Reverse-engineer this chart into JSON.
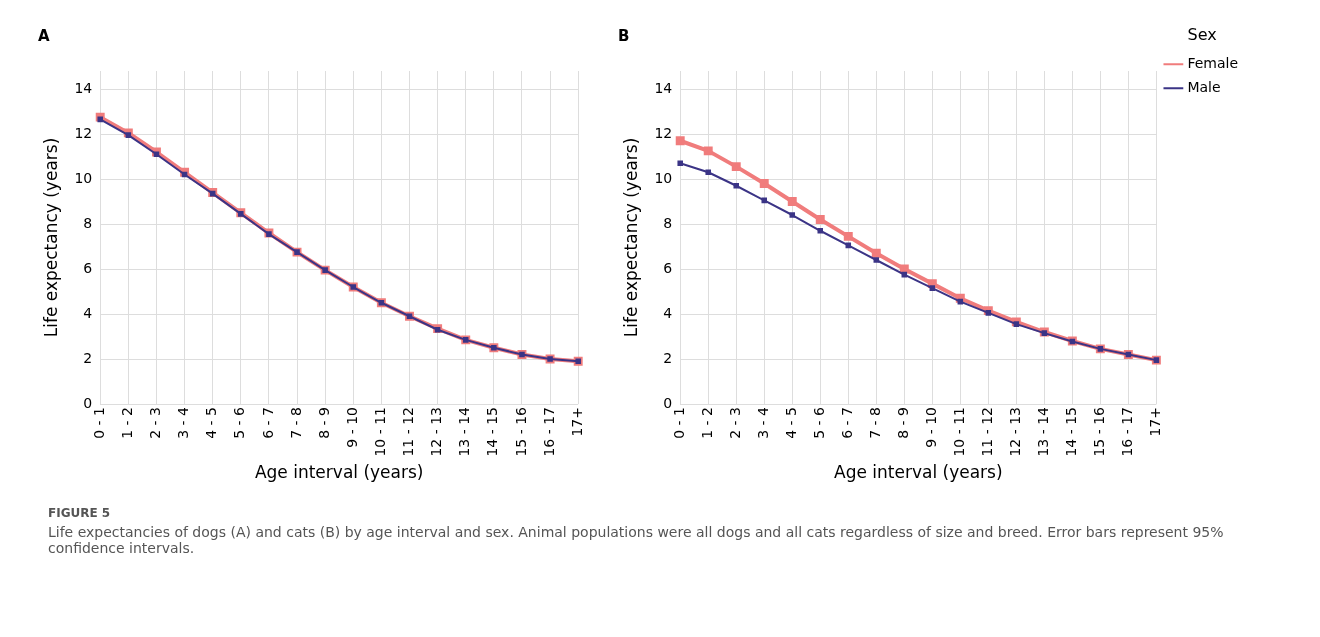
{
  "chart_data": [
    {
      "type": "line",
      "title": "A",
      "xlabel": "Age interval (years)",
      "ylabel": "Life expectancy (years)",
      "categories": [
        "0 - 1",
        "1 - 2",
        "2 - 3",
        "3 - 4",
        "4 - 5",
        "5 - 6",
        "6 - 7",
        "7 - 8",
        "8 - 9",
        "9 - 10",
        "10 - 11",
        "11 - 12",
        "12 - 13",
        "13 - 14",
        "14 - 15",
        "15 - 16",
        "16 - 17",
        "17+"
      ],
      "series": [
        {
          "color": "#f07c7c",
          "values": [
            12.75,
            12.05,
            11.2,
            10.3,
            9.4,
            8.5,
            7.6,
            6.75,
            5.95,
            5.2,
            4.5,
            3.9,
            3.35,
            2.85,
            2.5,
            2.2,
            2.0,
            1.9
          ]
        },
        {
          "color": "#3b3486",
          "values": [
            12.65,
            11.95,
            11.1,
            10.2,
            9.35,
            8.45,
            7.55,
            6.75,
            5.95,
            5.2,
            4.5,
            3.9,
            3.3,
            2.85,
            2.5,
            2.2,
            2.0,
            1.9
          ]
        }
      ],
      "ylim": [
        0,
        14.8
      ],
      "yticks": [
        0,
        2,
        4,
        6,
        8,
        10,
        12,
        14
      ],
      "grid": true,
      "legend": false,
      "marker": "square",
      "line_style": "solid",
      "annotations": [
        "FIGURE 5",
        "Life expectancies of dogs (A) and cats (B) by age interval and sex. Animal populations were all dogs and all cats regardless of size and breed. Error bars represent 95% confidence intervals."
      ]
    },
    {
      "type": "line",
      "title": "B",
      "xlabel": "Age interval (years)",
      "ylabel": "Life expectancy (years)",
      "legend_title": "Sex",
      "categories": [
        "0 - 1",
        "1 - 2",
        "2 - 3",
        "3 - 4",
        "4 - 5",
        "5 - 6",
        "6 - 7",
        "7 - 8",
        "8 - 9",
        "9 - 10",
        "10 - 11",
        "11 - 12",
        "12 - 13",
        "13 - 14",
        "14 - 15",
        "15 - 16",
        "16 - 17",
        "17+"
      ],
      "series": [
        {
          "name": "Female",
          "color": "#f07c7c",
          "values": [
            11.7,
            11.25,
            10.55,
            9.8,
            9.0,
            8.2,
            7.45,
            6.7,
            6.0,
            5.35,
            4.7,
            4.15,
            3.65,
            3.2,
            2.8,
            2.45,
            2.2,
            1.95
          ]
        },
        {
          "name": "Male",
          "color": "#3b3486",
          "values": [
            10.7,
            10.3,
            9.7,
            9.05,
            8.4,
            7.7,
            7.05,
            6.4,
            5.75,
            5.15,
            4.55,
            4.05,
            3.55,
            3.15,
            2.78,
            2.45,
            2.2,
            1.95
          ]
        }
      ],
      "ylim": [
        0,
        14.8
      ],
      "yticks": [
        0,
        2,
        4,
        6,
        8,
        10,
        12,
        14
      ],
      "grid": true,
      "legend": "right",
      "marker": "square",
      "line_style": "solid"
    }
  ]
}
